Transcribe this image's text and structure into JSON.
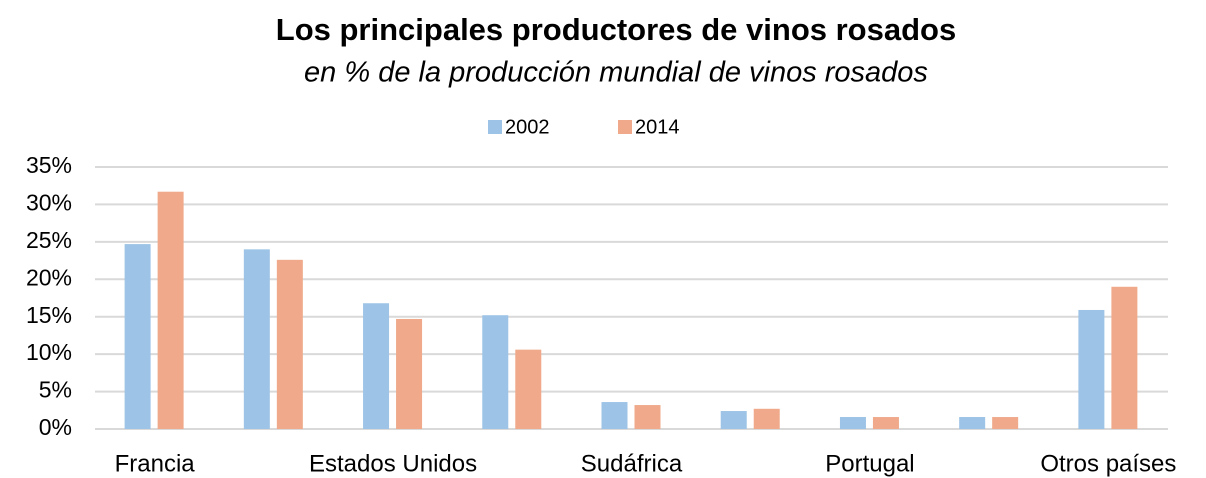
{
  "chart_data": {
    "type": "bar",
    "title": "Los principales productores de vinos rosados",
    "subtitle": "en % de la producción mundial de vinos rosados",
    "categories": [
      "Francia",
      null,
      "Estados Unidos",
      null,
      "Sudáfrica",
      null,
      "Portugal",
      null,
      "Otros países"
    ],
    "series": [
      {
        "name": "2002",
        "color": "#9dc3e6",
        "values": [
          24.7,
          24.0,
          16.8,
          15.2,
          3.6,
          2.4,
          1.6,
          1.6,
          15.9
        ]
      },
      {
        "name": "2014",
        "color": "#f0aa8b",
        "values": [
          31.7,
          22.6,
          14.7,
          10.6,
          3.2,
          2.7,
          1.6,
          1.6,
          19.0
        ]
      }
    ],
    "ylim": [
      0,
      35
    ],
    "yticks": [
      {
        "value": 0,
        "label": "0%"
      },
      {
        "value": 5,
        "label": "5%"
      },
      {
        "value": 10,
        "label": "10%"
      },
      {
        "value": 15,
        "label": "15%"
      },
      {
        "value": 20,
        "label": "20%"
      },
      {
        "value": 25,
        "label": "25%"
      },
      {
        "value": 30,
        "label": "30%"
      },
      {
        "value": 35,
        "label": "35%"
      }
    ],
    "grid": true,
    "legend": "top"
  }
}
